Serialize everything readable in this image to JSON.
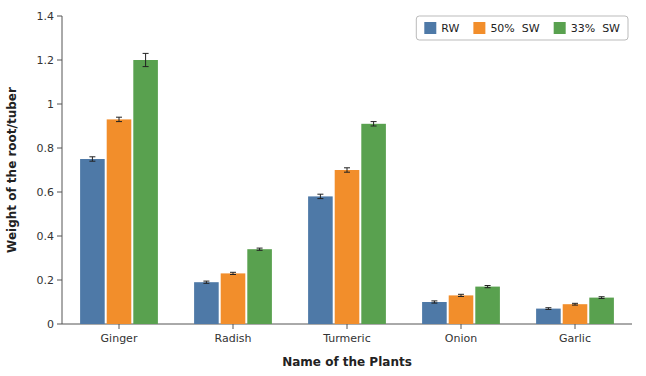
{
  "chart_data": {
    "type": "bar",
    "xlabel": "Name of the Plants",
    "ylabel": "Weight of the root/tuber",
    "categories": [
      "Ginger",
      "Radish",
      "Turmeric",
      "Onion",
      "Garlic"
    ],
    "series": [
      {
        "name": "RW",
        "values": [
          0.75,
          0.19,
          0.58,
          0.1,
          0.07
        ],
        "errors": [
          0.01,
          0.005,
          0.01,
          0.005,
          0.004
        ]
      },
      {
        "name": "50%  SW",
        "values": [
          0.93,
          0.23,
          0.7,
          0.13,
          0.09
        ],
        "errors": [
          0.01,
          0.005,
          0.01,
          0.005,
          0.004
        ]
      },
      {
        "name": "33%  SW",
        "values": [
          1.2,
          0.34,
          0.91,
          0.17,
          0.12
        ],
        "errors": [
          0.03,
          0.005,
          0.01,
          0.005,
          0.004
        ]
      }
    ],
    "ylim": [
      0,
      1.4
    ],
    "yticks": [
      0,
      0.2,
      0.4,
      0.6,
      0.8,
      1.0,
      1.2,
      1.4
    ],
    "grid": false,
    "legend": "upper right"
  }
}
